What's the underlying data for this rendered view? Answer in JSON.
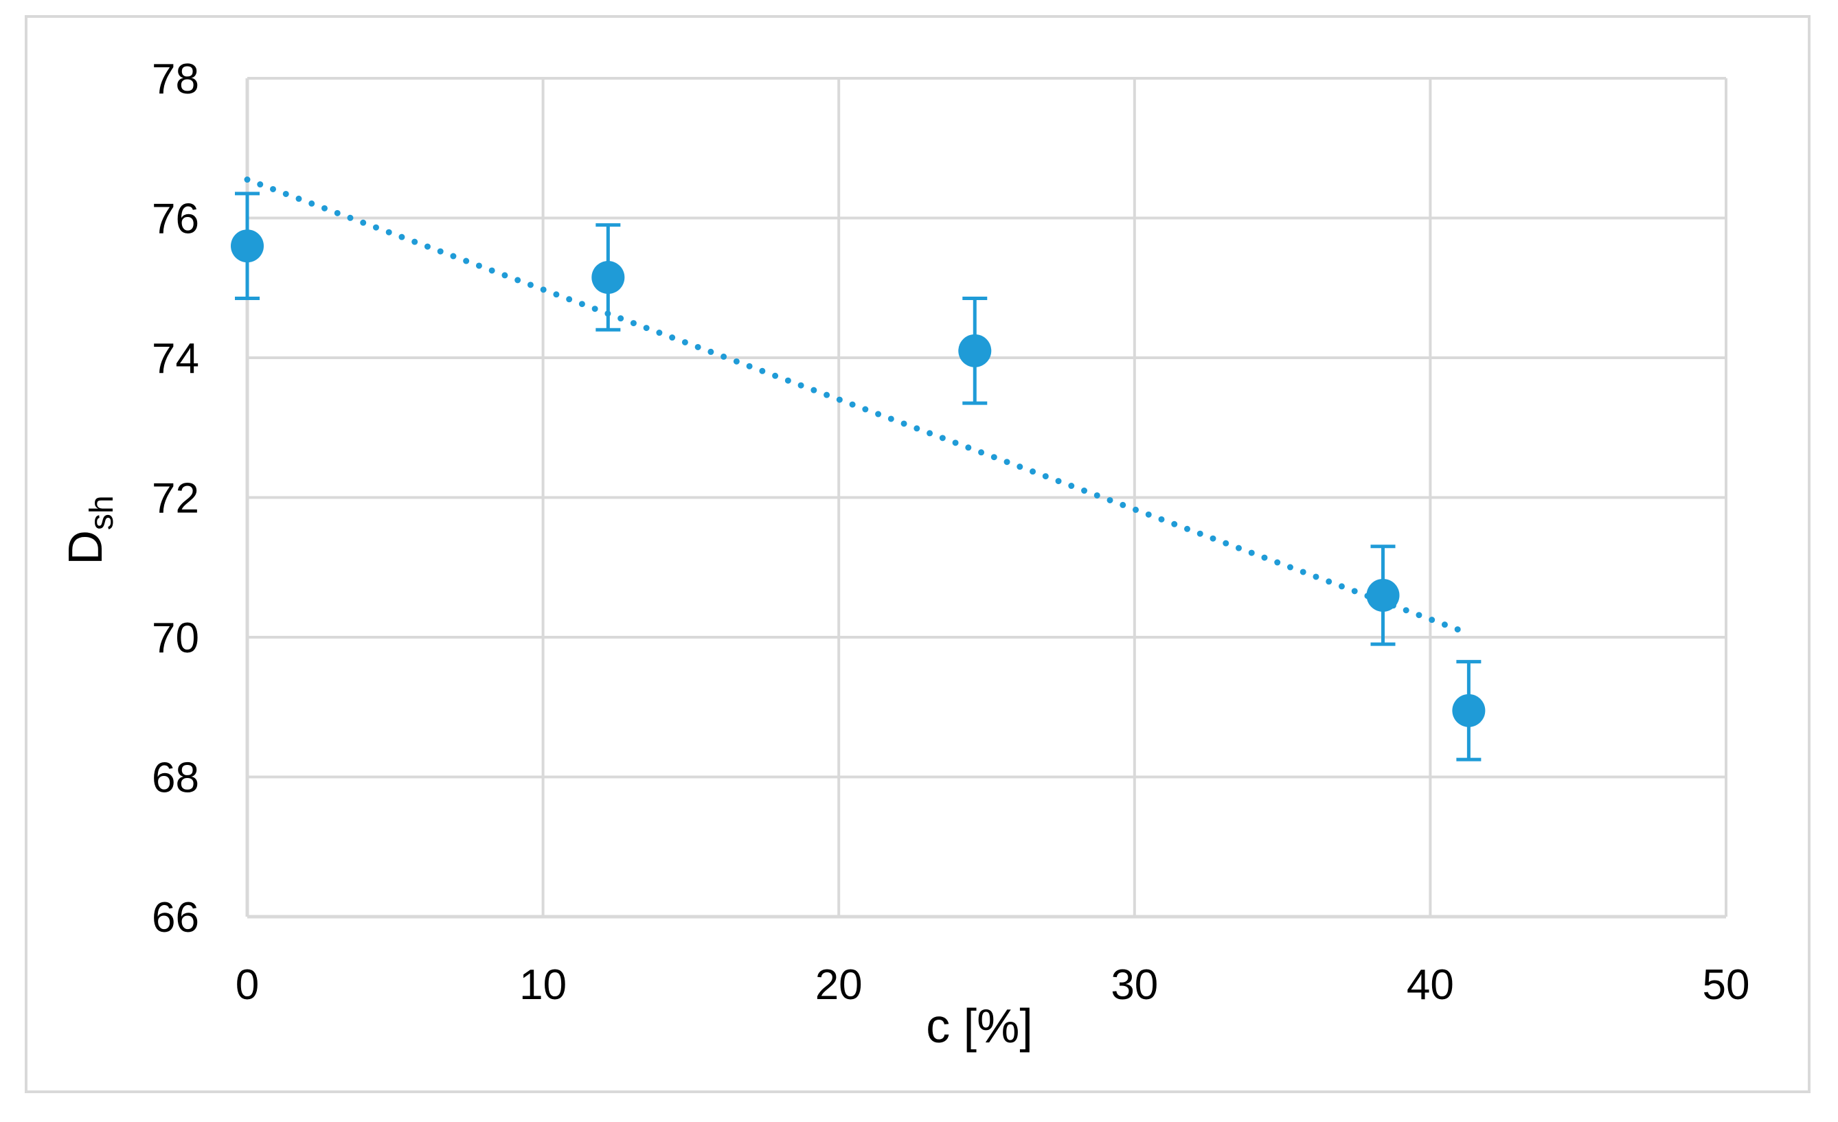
{
  "chart_data": {
    "type": "scatter",
    "title": "",
    "xlabel": "c [%]",
    "ylabel": {
      "main": "D",
      "sub": "sh"
    },
    "xlim": [
      0,
      50
    ],
    "ylim": [
      66,
      78
    ],
    "xticks": [
      "0",
      "10",
      "20",
      "30",
      "40",
      "50"
    ],
    "yticks": [
      "66",
      "68",
      "70",
      "72",
      "74",
      "76",
      "78"
    ],
    "grid": true,
    "legend": "none",
    "series": [
      {
        "points": [
          {
            "x": 0.0,
            "y": 75.6,
            "err": 0.75
          },
          {
            "x": 12.2,
            "y": 75.15,
            "err": 0.75
          },
          {
            "x": 24.6,
            "y": 74.1,
            "err": 0.75
          },
          {
            "x": 38.4,
            "y": 70.6,
            "err": 0.7
          },
          {
            "x": 41.3,
            "y": 68.95,
            "err": 0.7
          }
        ]
      }
    ],
    "trendline": {
      "type": "linear",
      "style": "dotted",
      "x": [
        0,
        41
      ],
      "y": [
        76.55,
        70.1
      ]
    },
    "colors": {
      "series": "#1f9bd7",
      "grid": "#d9d9d9",
      "axis": "#d9d9d9"
    }
  }
}
